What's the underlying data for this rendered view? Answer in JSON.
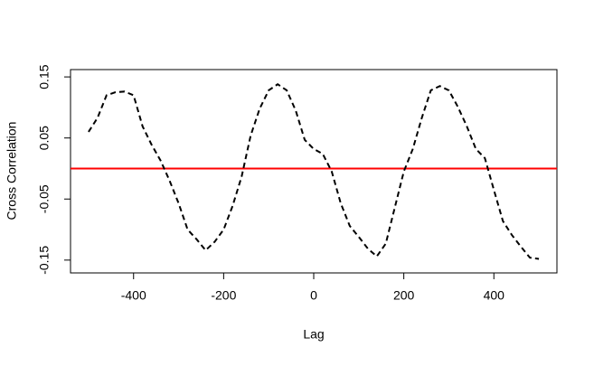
{
  "chart_data": {
    "type": "line",
    "xlabel": "Lag",
    "ylabel": "Cross Correlation",
    "x": [
      -500,
      -480,
      -460,
      -440,
      -420,
      -400,
      -380,
      -360,
      -340,
      -320,
      -300,
      -280,
      -260,
      -240,
      -220,
      -200,
      -180,
      -160,
      -140,
      -120,
      -100,
      -80,
      -60,
      -40,
      -20,
      0,
      20,
      40,
      60,
      80,
      100,
      120,
      140,
      160,
      180,
      200,
      220,
      240,
      260,
      280,
      300,
      320,
      340,
      360,
      380,
      400,
      420,
      440,
      460,
      480,
      500
    ],
    "series": [
      {
        "color": "#000000",
        "values": [
          0.06,
          0.083,
          0.12,
          0.125,
          0.126,
          0.12,
          0.069,
          0.039,
          0.013,
          -0.02,
          -0.057,
          -0.1,
          -0.116,
          -0.134,
          -0.12,
          -0.1,
          -0.061,
          -0.013,
          0.054,
          0.098,
          0.128,
          0.138,
          0.128,
          0.095,
          0.047,
          0.032,
          0.024,
          -0.005,
          -0.057,
          -0.094,
          -0.112,
          -0.131,
          -0.144,
          -0.123,
          -0.064,
          -0.005,
          0.032,
          0.083,
          0.128,
          0.135,
          0.128,
          0.101,
          0.069,
          0.032,
          0.017,
          -0.035,
          -0.086,
          -0.109,
          -0.128,
          -0.146,
          -0.148
        ]
      }
    ],
    "hlines": [
      {
        "y": 0,
        "color": "#ff0000"
      }
    ],
    "xlim": [
      -540,
      540
    ],
    "ylim": [
      -0.171,
      0.162
    ],
    "xticks": [
      -400,
      -200,
      0,
      200,
      400
    ],
    "yticks": [
      -0.15,
      -0.05,
      0.05,
      0.15
    ]
  }
}
